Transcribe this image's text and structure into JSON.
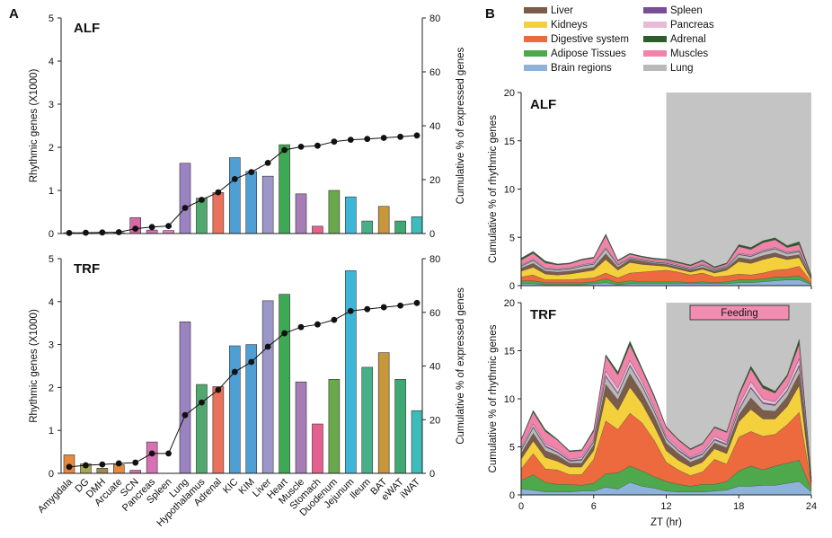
{
  "panels": {
    "a_label": "A",
    "b_label": "B"
  },
  "legend": [
    {
      "name": "Liver",
      "color": "#7b5b49"
    },
    {
      "name": "Kidneys",
      "color": "#f4d13c"
    },
    {
      "name": "Digestive system",
      "color": "#ec6a3e"
    },
    {
      "name": "Adipose Tissues",
      "color": "#4ea84c"
    },
    {
      "name": "Brain regions",
      "color": "#8db3db"
    },
    {
      "name": "Spleen",
      "color": "#7a4d97"
    },
    {
      "name": "Pancreas",
      "color": "#e8bad8"
    },
    {
      "name": "Adrenal",
      "color": "#2d5c2d"
    },
    {
      "name": "Muscles",
      "color": "#f083aa"
    },
    {
      "name": "Lung",
      "color": "#b9b9b9"
    }
  ],
  "chart_data": [
    {
      "type": "bar",
      "title": "ALF",
      "ylabel": "Rhythmic genes (X1000)",
      "y2label": "Cumulative % of expressed genes",
      "ylim": [
        0,
        5
      ],
      "y2lim": [
        0,
        80
      ],
      "y_ticks": [
        0,
        1,
        2,
        3,
        4,
        5
      ],
      "y2_ticks": [
        0,
        20,
        40,
        60,
        80
      ],
      "values": [
        0.02,
        0.01,
        0.01,
        0.02,
        0.37,
        0.08,
        0.07,
        1.63,
        0.82,
        0.95,
        1.76,
        1.44,
        1.33,
        2.06,
        0.92,
        0.17,
        1.0,
        0.85,
        0.29,
        0.63,
        0.29,
        0.39
      ],
      "cumulative": [
        0.2,
        0.3,
        0.4,
        0.5,
        1.8,
        2.4,
        2.8,
        9.5,
        12.5,
        15.3,
        20.2,
        22.8,
        26.2,
        31.0,
        32.2,
        32.6,
        34.1,
        34.8,
        35.1,
        35.5,
        35.9,
        36.4
      ],
      "colors": [
        "#e88a3e",
        "#a5a84e",
        "#9c8a52",
        "#e4893e",
        "#d56aa5",
        "#d871b3",
        "#e07cbd",
        "#9b82c0",
        "#4fa96f",
        "#ea725c",
        "#4f9fd4",
        "#4f9fd4",
        "#9c97c9",
        "#3ea954",
        "#a67cb9",
        "#e6608f",
        "#6aa84c",
        "#3db6d7",
        "#47b08b",
        "#c8973c",
        "#3ea973",
        "#3dbcba"
      ]
    },
    {
      "type": "bar",
      "title": "TRF",
      "ylabel": "Rhythmic genes (X1000)",
      "y2label": "Cumulative % of expressed genes",
      "ylim": [
        0,
        5
      ],
      "y2lim": [
        0,
        80
      ],
      "y_ticks": [
        0,
        1,
        2,
        3,
        4,
        5
      ],
      "y2_ticks": [
        0,
        20,
        40,
        60,
        80
      ],
      "categories": [
        "Amygdala",
        "DG",
        "DMH",
        "Arcuate",
        "SCN",
        "Pancreas",
        "Spleen",
        "Lung",
        "Hypothalamus",
        "Adrenal",
        "KIC",
        "KIM",
        "Liver",
        "Heart",
        "Muscle",
        "Stomach",
        "Duodenum",
        "Jejunum",
        "Ileum",
        "BAT",
        "eWAT",
        "iWAT"
      ],
      "values": [
        0.43,
        0.22,
        0.12,
        0.2,
        0.07,
        0.73,
        0.0,
        3.53,
        2.07,
        2.02,
        2.97,
        3.0,
        4.02,
        4.17,
        2.13,
        1.15,
        2.19,
        4.72,
        2.47,
        2.81,
        2.19,
        1.46
      ],
      "cumulative": [
        2.4,
        3.0,
        3.3,
        3.7,
        4.0,
        7.4,
        7.4,
        21.7,
        26.4,
        31.1,
        37.8,
        41.5,
        47.2,
        52.2,
        54.5,
        55.5,
        57.2,
        60.5,
        61.2,
        61.9,
        62.5,
        63.5
      ],
      "colors": [
        "#e88a3e",
        "#a5a84e",
        "#9c8a52",
        "#e4893e",
        "#d56aa5",
        "#d871b3",
        "#e07cbd",
        "#9b82c0",
        "#4fa96f",
        "#ea725c",
        "#4f9fd4",
        "#4f9fd4",
        "#9c97c9",
        "#3ea954",
        "#a67cb9",
        "#e6608f",
        "#6aa84c",
        "#3db6d7",
        "#47b08b",
        "#c8973c",
        "#3ea973",
        "#3dbcba"
      ]
    },
    {
      "type": "area",
      "title": "ALF",
      "ylabel": "Cumulative % of rhythmic genes",
      "ylim": [
        0,
        20
      ],
      "y_ticks": [
        0,
        5,
        10,
        15,
        20
      ],
      "x": [
        0,
        1,
        2,
        3,
        4,
        5,
        6,
        7,
        8,
        9,
        10,
        11,
        12,
        13,
        14,
        15,
        16,
        17,
        18,
        19,
        20,
        21,
        22,
        23,
        24
      ],
      "shaded_range": [
        12,
        24
      ],
      "series": {
        "Brain regions": [
          0.2,
          0.2,
          0.1,
          0.1,
          0.1,
          0.1,
          0.2,
          0.3,
          0.1,
          0.2,
          0.2,
          0.2,
          0.2,
          0.2,
          0.2,
          0.2,
          0.2,
          0.2,
          0.3,
          0.3,
          0.4,
          0.5,
          0.6,
          0.6,
          0.1
        ],
        "Adipose Tissues": [
          0.3,
          0.3,
          0.2,
          0.2,
          0.2,
          0.2,
          0.2,
          0.4,
          0.2,
          0.3,
          0.2,
          0.2,
          0.2,
          0.2,
          0.1,
          0.2,
          0.1,
          0.2,
          0.3,
          0.3,
          0.3,
          0.4,
          0.3,
          0.4,
          0.1
        ],
        "Digestive system": [
          0.4,
          0.6,
          0.3,
          0.3,
          0.3,
          0.4,
          0.4,
          0.6,
          0.5,
          0.8,
          1.0,
          1.1,
          1.2,
          1.0,
          0.8,
          0.9,
          0.6,
          0.6,
          0.6,
          0.5,
          0.6,
          0.7,
          0.8,
          1.0,
          0.2
        ],
        "Kidneys": [
          0.6,
          0.8,
          0.6,
          0.5,
          0.6,
          0.7,
          0.8,
          1.4,
          0.8,
          1.1,
          0.8,
          0.6,
          0.4,
          0.3,
          0.3,
          0.4,
          0.4,
          0.6,
          1.3,
          1.2,
          1.4,
          1.4,
          1.0,
          0.9,
          0.2
        ],
        "Liver": [
          0.3,
          0.4,
          0.3,
          0.3,
          0.3,
          0.3,
          0.3,
          0.6,
          0.3,
          0.3,
          0.3,
          0.2,
          0.2,
          0.2,
          0.2,
          0.2,
          0.2,
          0.2,
          0.4,
          0.4,
          0.4,
          0.4,
          0.3,
          0.3,
          0.1
        ],
        "Lung": [
          0.2,
          0.3,
          0.2,
          0.2,
          0.2,
          0.3,
          0.3,
          0.5,
          0.2,
          0.1,
          0.1,
          0.1,
          0.1,
          0.1,
          0.1,
          0.2,
          0.1,
          0.1,
          0.3,
          0.3,
          0.4,
          0.4,
          0.3,
          0.3,
          0.1
        ],
        "Spleen": [
          0.05,
          0.05,
          0.05,
          0.05,
          0.05,
          0.05,
          0.05,
          0.05,
          0.05,
          0.05,
          0.05,
          0.05,
          0.05,
          0.05,
          0.05,
          0.05,
          0.05,
          0.05,
          0.05,
          0.05,
          0.05,
          0.05,
          0.05,
          0.05,
          0.05
        ],
        "Pancreas": [
          0.1,
          0.1,
          0.1,
          0.1,
          0.1,
          0.1,
          0.1,
          0.1,
          0.1,
          0.1,
          0.1,
          0.1,
          0.1,
          0.1,
          0.1,
          0.1,
          0.1,
          0.1,
          0.1,
          0.1,
          0.1,
          0.1,
          0.1,
          0.1,
          0.05
        ],
        "Muscles": [
          0.5,
          0.6,
          0.5,
          0.4,
          0.4,
          0.5,
          0.5,
          1.2,
          0.3,
          0.3,
          0.2,
          0.2,
          0.2,
          0.2,
          0.2,
          0.3,
          0.1,
          0.2,
          0.7,
          0.6,
          0.8,
          0.8,
          0.5,
          0.6,
          0.1
        ],
        "Adrenal": [
          0.2,
          0.2,
          0.2,
          0.1,
          0.1,
          0.1,
          0.1,
          0.2,
          0.1,
          0.1,
          0.1,
          0.1,
          0.1,
          0.1,
          0.1,
          0.1,
          0.1,
          0.1,
          0.2,
          0.2,
          0.2,
          0.2,
          0.2,
          0.3,
          0.1
        ]
      }
    },
    {
      "type": "area",
      "title": "TRF",
      "annotation": "Feeding",
      "xlabel": "ZT (hr)",
      "ylabel": "Cumulative % of rhythmic genes",
      "ylim": [
        0,
        20
      ],
      "y_ticks": [
        0,
        5,
        10,
        15,
        20
      ],
      "x_ticks": [
        0,
        6,
        12,
        18,
        24
      ],
      "x": [
        0,
        1,
        2,
        3,
        4,
        5,
        6,
        7,
        8,
        9,
        10,
        11,
        12,
        13,
        14,
        15,
        16,
        17,
        18,
        19,
        20,
        21,
        22,
        23,
        24
      ],
      "shaded_range": [
        12,
        24
      ],
      "series": {
        "Brain regions": [
          0.6,
          0.5,
          0.3,
          0.3,
          0.3,
          0.4,
          0.4,
          0.8,
          0.6,
          1.3,
          0.9,
          0.7,
          0.4,
          0.3,
          0.3,
          0.3,
          0.4,
          0.5,
          0.9,
          0.9,
          1.0,
          1.0,
          1.2,
          1.4,
          0.3
        ],
        "Adipose Tissues": [
          0.9,
          1.6,
          1.0,
          0.8,
          0.8,
          0.6,
          0.8,
          1.4,
          1.7,
          1.7,
          1.6,
          1.2,
          1.0,
          0.8,
          0.6,
          0.8,
          0.7,
          0.9,
          1.6,
          2.1,
          1.6,
          2.0,
          2.1,
          2.2,
          0.3
        ],
        "Digestive system": [
          1.2,
          2.2,
          1.4,
          1.5,
          1.0,
          1.1,
          2.5,
          5.5,
          4.5,
          5.5,
          5.0,
          3.8,
          2.0,
          1.5,
          1.1,
          1.3,
          2.6,
          1.8,
          3.5,
          3.6,
          3.5,
          3.3,
          4.0,
          5.0,
          0.3
        ],
        "Kidneys": [
          1.0,
          1.3,
          1.2,
          0.9,
          0.8,
          0.8,
          0.9,
          2.6,
          2.0,
          2.7,
          2.0,
          1.5,
          1.2,
          1.0,
          0.9,
          1.0,
          1.1,
          1.1,
          1.6,
          2.3,
          1.8,
          1.6,
          1.9,
          2.8,
          0.2
        ],
        "Liver": [
          0.6,
          0.8,
          0.7,
          0.6,
          0.4,
          0.4,
          0.6,
          1.2,
          1.1,
          1.4,
          1.1,
          1.0,
          0.8,
          0.7,
          0.5,
          0.5,
          0.6,
          0.6,
          0.7,
          1.2,
          0.9,
          0.8,
          1.0,
          1.2,
          0.2
        ],
        "Lung": [
          0.3,
          0.6,
          0.4,
          0.3,
          0.2,
          0.3,
          0.3,
          0.8,
          0.6,
          0.8,
          0.7,
          0.5,
          0.4,
          0.3,
          0.3,
          0.3,
          0.3,
          0.3,
          0.5,
          1.0,
          0.7,
          0.6,
          0.6,
          0.8,
          0.1
        ],
        "Spleen": [
          0.1,
          0.1,
          0.1,
          0.1,
          0.1,
          0.1,
          0.1,
          0.1,
          0.1,
          0.1,
          0.1,
          0.1,
          0.1,
          0.1,
          0.1,
          0.1,
          0.1,
          0.1,
          0.1,
          0.1,
          0.1,
          0.1,
          0.1,
          0.1,
          0.05
        ],
        "Pancreas": [
          0.2,
          0.3,
          0.2,
          0.2,
          0.1,
          0.2,
          0.2,
          0.5,
          0.5,
          0.5,
          0.4,
          0.3,
          0.2,
          0.2,
          0.1,
          0.2,
          0.3,
          0.2,
          0.4,
          0.6,
          0.4,
          0.3,
          0.4,
          0.7,
          0.1
        ],
        "Muscles": [
          0.8,
          1.2,
          1.3,
          1.0,
          0.8,
          0.7,
          0.8,
          1.5,
          1.4,
          1.6,
          1.2,
          1.1,
          0.9,
          0.8,
          0.8,
          0.8,
          0.9,
          1.0,
          1.0,
          1.3,
          1.1,
          0.9,
          1.0,
          1.5,
          0.2
        ],
        "Adrenal": [
          0.1,
          0.2,
          0.2,
          0.1,
          0.1,
          0.1,
          0.2,
          0.2,
          0.3,
          0.4,
          0.2,
          0.2,
          0.1,
          0.1,
          0.1,
          0.1,
          0.1,
          0.1,
          0.2,
          0.3,
          0.3,
          0.2,
          0.2,
          0.5,
          0.1
        ]
      }
    }
  ]
}
